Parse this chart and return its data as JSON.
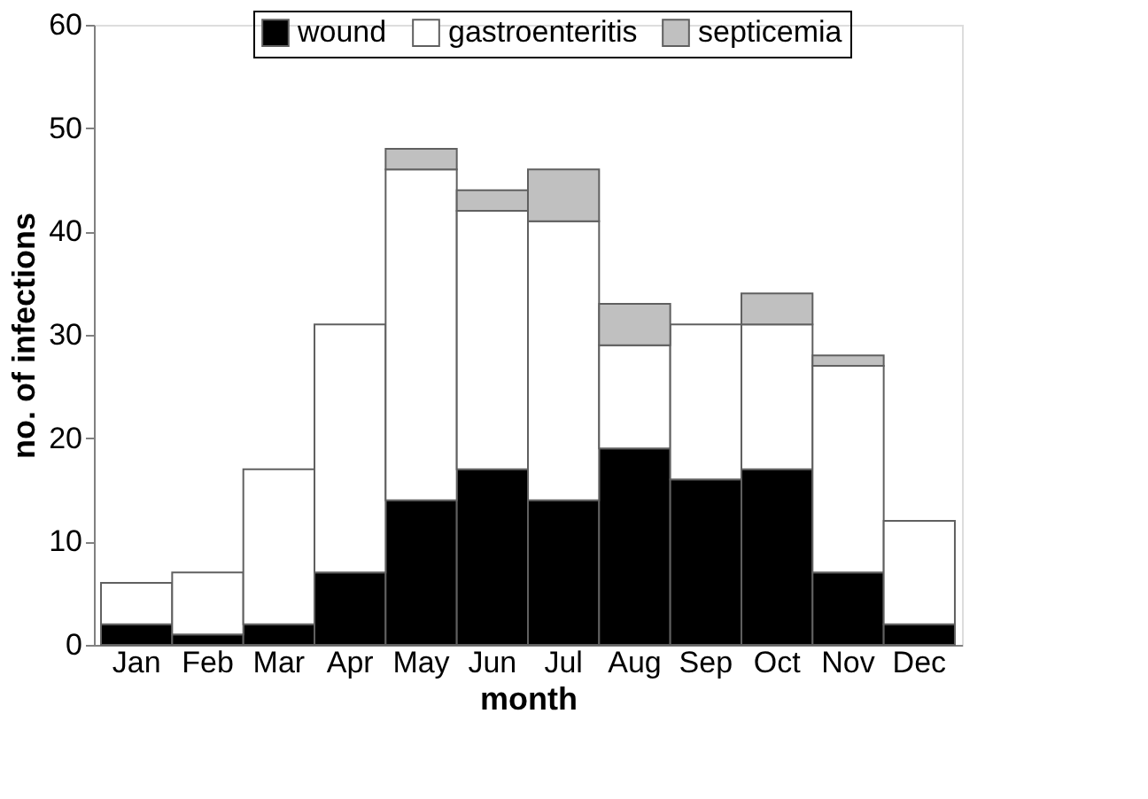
{
  "chart_data": {
    "type": "bar",
    "stacked": true,
    "xlabel": "month",
    "ylabel": "no. of infections",
    "categories": [
      "Jan",
      "Feb",
      "Mar",
      "Apr",
      "May",
      "Jun",
      "Jul",
      "Aug",
      "Sep",
      "Oct",
      "Nov",
      "Dec"
    ],
    "series": [
      {
        "name": "wound",
        "color": "#000000",
        "values": [
          2,
          1,
          2,
          7,
          14,
          17,
          14,
          19,
          16,
          17,
          7,
          2
        ]
      },
      {
        "name": "gastroenteritis",
        "color": "#ffffff",
        "values": [
          4,
          6,
          15,
          24,
          32,
          25,
          27,
          10,
          15,
          14,
          20,
          10
        ]
      },
      {
        "name": "septicemia",
        "color": "#c0c0c0",
        "values": [
          0,
          0,
          0,
          0,
          2,
          2,
          5,
          4,
          0,
          3,
          1,
          0
        ]
      }
    ],
    "ylim": [
      0,
      60
    ],
    "yticks": [
      0,
      10,
      20,
      30,
      40,
      50,
      60
    ],
    "grid": false,
    "legend": "top"
  }
}
